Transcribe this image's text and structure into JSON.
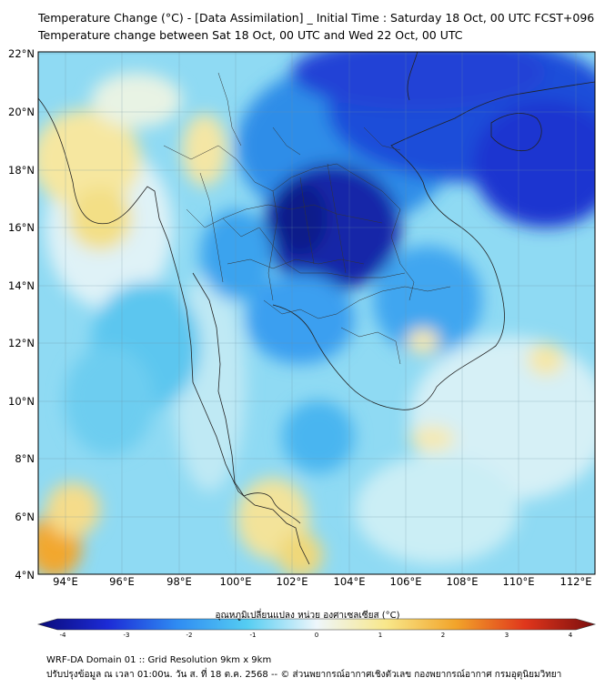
{
  "header": {
    "title_line1": "Temperature Change (°C) - [Data Assimilation] _ Initial Time : Saturday 18 Oct, 00 UTC FCST+096",
    "title_line2": "Temperature change between Sat 18 Oct, 00 UTC and Wed 22 Oct, 00 UTC"
  },
  "map": {
    "lon_labels": [
      "94°E",
      "96°E",
      "98°E",
      "100°E",
      "102°E",
      "104°E",
      "106°E",
      "108°E",
      "110°E",
      "112°E"
    ],
    "lat_labels": [
      "22°N",
      "20°N",
      "18°N",
      "16°N",
      "14°N",
      "12°N",
      "10°N",
      "8°N",
      "6°N",
      "4°N"
    ]
  },
  "colorbar": {
    "label": "อุณหภูมิเปลี่ยนแปลง หน่วย องศาเซลเซียส (°C)",
    "ticks": [
      "-4",
      "-3",
      "-2",
      "-1",
      "0",
      "1",
      "2",
      "3",
      "4"
    ],
    "colors": [
      "#0b0b7a",
      "#1c2bd6",
      "#2f8cf2",
      "#55cdf2",
      "#eef6fb",
      "#f8e78a",
      "#f2a42a",
      "#e0361c",
      "#7a0d0d"
    ]
  },
  "footer": {
    "line1": "WRF-DA Domain 01 :: Grid Resolution 9km x 9km",
    "line2": "ปรับปรุงข้อมูล ณ เวลา 01:00น. วัน ส. ที่ 18 ต.ค. 2568 -- © ส่วนพยากรณ์อากาศเชิงตัวเลข กองพยากรณ์อากาศ กรมอุตุนิยมวิทยา"
  }
}
